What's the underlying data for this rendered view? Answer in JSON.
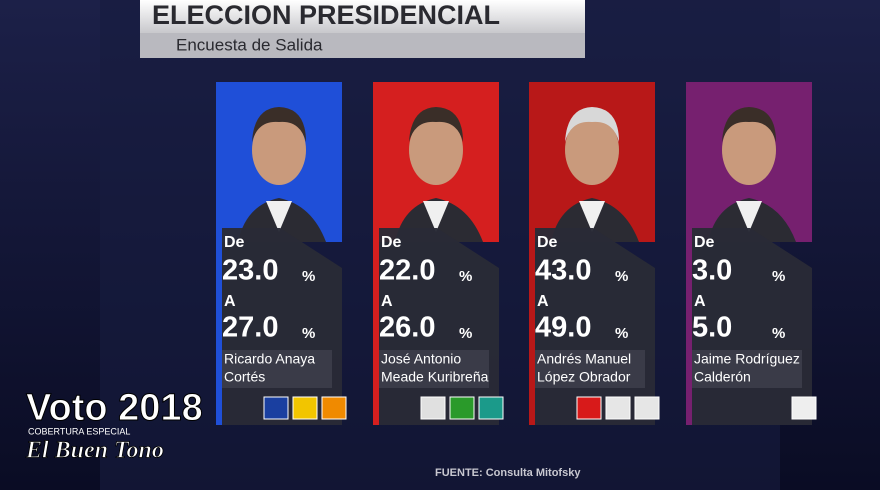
{
  "header": {
    "title": "ELECCION PRESIDENCIAL",
    "subtitle": "Encuesta de Salida"
  },
  "range_words": {
    "from": "De",
    "to": "A",
    "unit": "%"
  },
  "candidates": [
    {
      "from": "23.0",
      "to": "27.0",
      "name_line1": "Ricardo Anaya",
      "name_line2": "Cortés",
      "color": "#1f4fd8"
    },
    {
      "from": "22.0",
      "to": "26.0",
      "name_line1": "José Antonio",
      "name_line2": "Meade Kuribreña",
      "color": "#d51f1f"
    },
    {
      "from": "43.0",
      "to": "49.0",
      "name_line1": "Andrés Manuel",
      "name_line2": "López Obrador",
      "color": "#b81818"
    },
    {
      "from": "3.0",
      "to": "5.0",
      "name_line1": "Jaime Rodríguez",
      "name_line2": "Calderón",
      "color": "#76206f"
    }
  ],
  "footer": {
    "source": "FUENTE: Consulta Mitofsky"
  },
  "watermark": {
    "brand": "Voto 2018",
    "tagline": "COBERTURA ESPECIAL",
    "outlet": "El Buen Tono"
  }
}
